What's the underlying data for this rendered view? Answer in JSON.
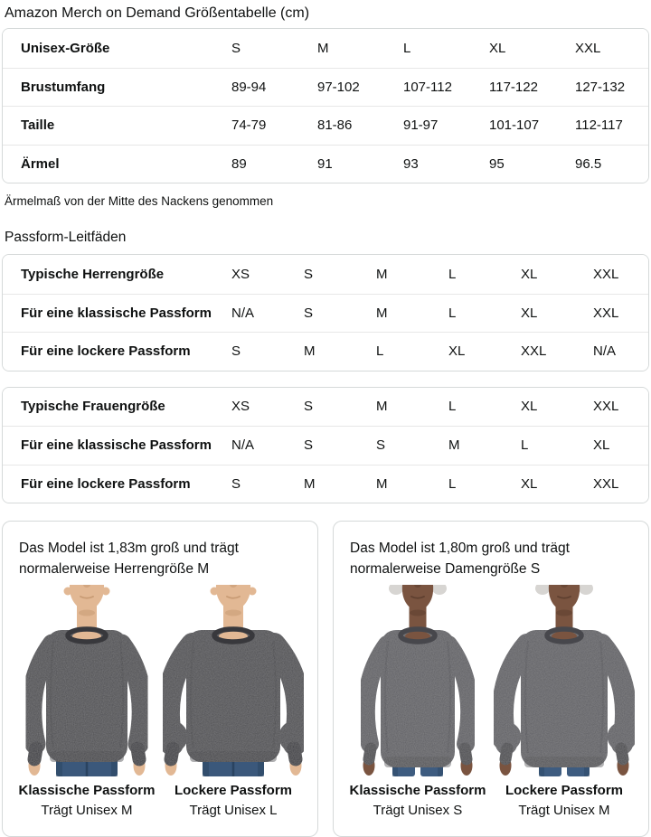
{
  "page": {
    "title": "Amazon Merch on Demand Größentabelle (cm)"
  },
  "size_table": {
    "rows": [
      {
        "label": "Unisex-Größe",
        "values": [
          "S",
          "M",
          "L",
          "XL",
          "XXL"
        ]
      },
      {
        "label": "Brustumfang",
        "values": [
          "89-94",
          "97-102",
          "107-112",
          "117-122",
          "127-132"
        ]
      },
      {
        "label": "Taille",
        "values": [
          "74-79",
          "81-86",
          "91-97",
          "101-107",
          "112-117"
        ]
      },
      {
        "label": "Ärmel",
        "values": [
          "89",
          "91",
          "93",
          "95",
          "96.5"
        ]
      }
    ]
  },
  "sleeve_note": "Ärmelmaß von der Mitte des Nackens genommen",
  "fit_guides_heading": "Passform-Leitfäden",
  "fit_tables": [
    {
      "rows": [
        {
          "label": "Typische Herrengröße",
          "values": [
            "XS",
            "S",
            "M",
            "L",
            "XL",
            "XXL"
          ]
        },
        {
          "label": "Für eine klassische Passform",
          "values": [
            "N/A",
            "S",
            "M",
            "L",
            "XL",
            "XXL"
          ]
        },
        {
          "label": "Für eine lockere Passform",
          "values": [
            "S",
            "M",
            "L",
            "XL",
            "XXL",
            "N/A"
          ]
        }
      ]
    },
    {
      "rows": [
        {
          "label": "Typische Frauengröße",
          "values": [
            "XS",
            "S",
            "M",
            "L",
            "XL",
            "XXL"
          ]
        },
        {
          "label": "Für eine klassische Passform",
          "values": [
            "N/A",
            "S",
            "S",
            "M",
            "L",
            "XL"
          ]
        },
        {
          "label": "Für eine lockere Passform",
          "values": [
            "S",
            "M",
            "M",
            "L",
            "XL",
            "XXL"
          ]
        }
      ]
    }
  ],
  "model_cards": [
    {
      "description": "Das Model ist 1,83m groß und trägt normalerweise Herrengröße M",
      "figures": [
        {
          "fit_label": "Klassische Passform",
          "size_label": "Trägt Unisex M",
          "model": "male",
          "fit": "classic"
        },
        {
          "fit_label": "Lockere Passform",
          "size_label": "Trägt Unisex L",
          "model": "male",
          "fit": "loose"
        }
      ]
    },
    {
      "description": "Das Model ist 1,80m groß und trägt normalerweise Damengröße S",
      "figures": [
        {
          "fit_label": "Klassische Passform",
          "size_label": "Trägt Unisex S",
          "model": "female",
          "fit": "classic"
        },
        {
          "fit_label": "Lockere Passform",
          "size_label": "Trägt Unisex M",
          "model": "female",
          "fit": "loose"
        }
      ]
    }
  ],
  "figure_colors": {
    "male": {
      "skin": "#e2b894",
      "skin_shadow": "#c2946c",
      "shirt": "#4b4b4f",
      "shirt_dark": "#38383c",
      "jeans": "#3b587b",
      "jeans_dark": "#2a4360"
    },
    "female": {
      "skin": "#7a5440",
      "skin_shadow": "#57392a",
      "shirt": "#5d5d62",
      "shirt_dark": "#47474c",
      "jeans": "#3e5c80",
      "jeans_dark": "#2c4765",
      "hair": "#d7d5d2"
    }
  },
  "ui_colors": {
    "text": "#0F1111",
    "table_border": "#D5D9D9",
    "row_divider": "#E7E7E7"
  }
}
